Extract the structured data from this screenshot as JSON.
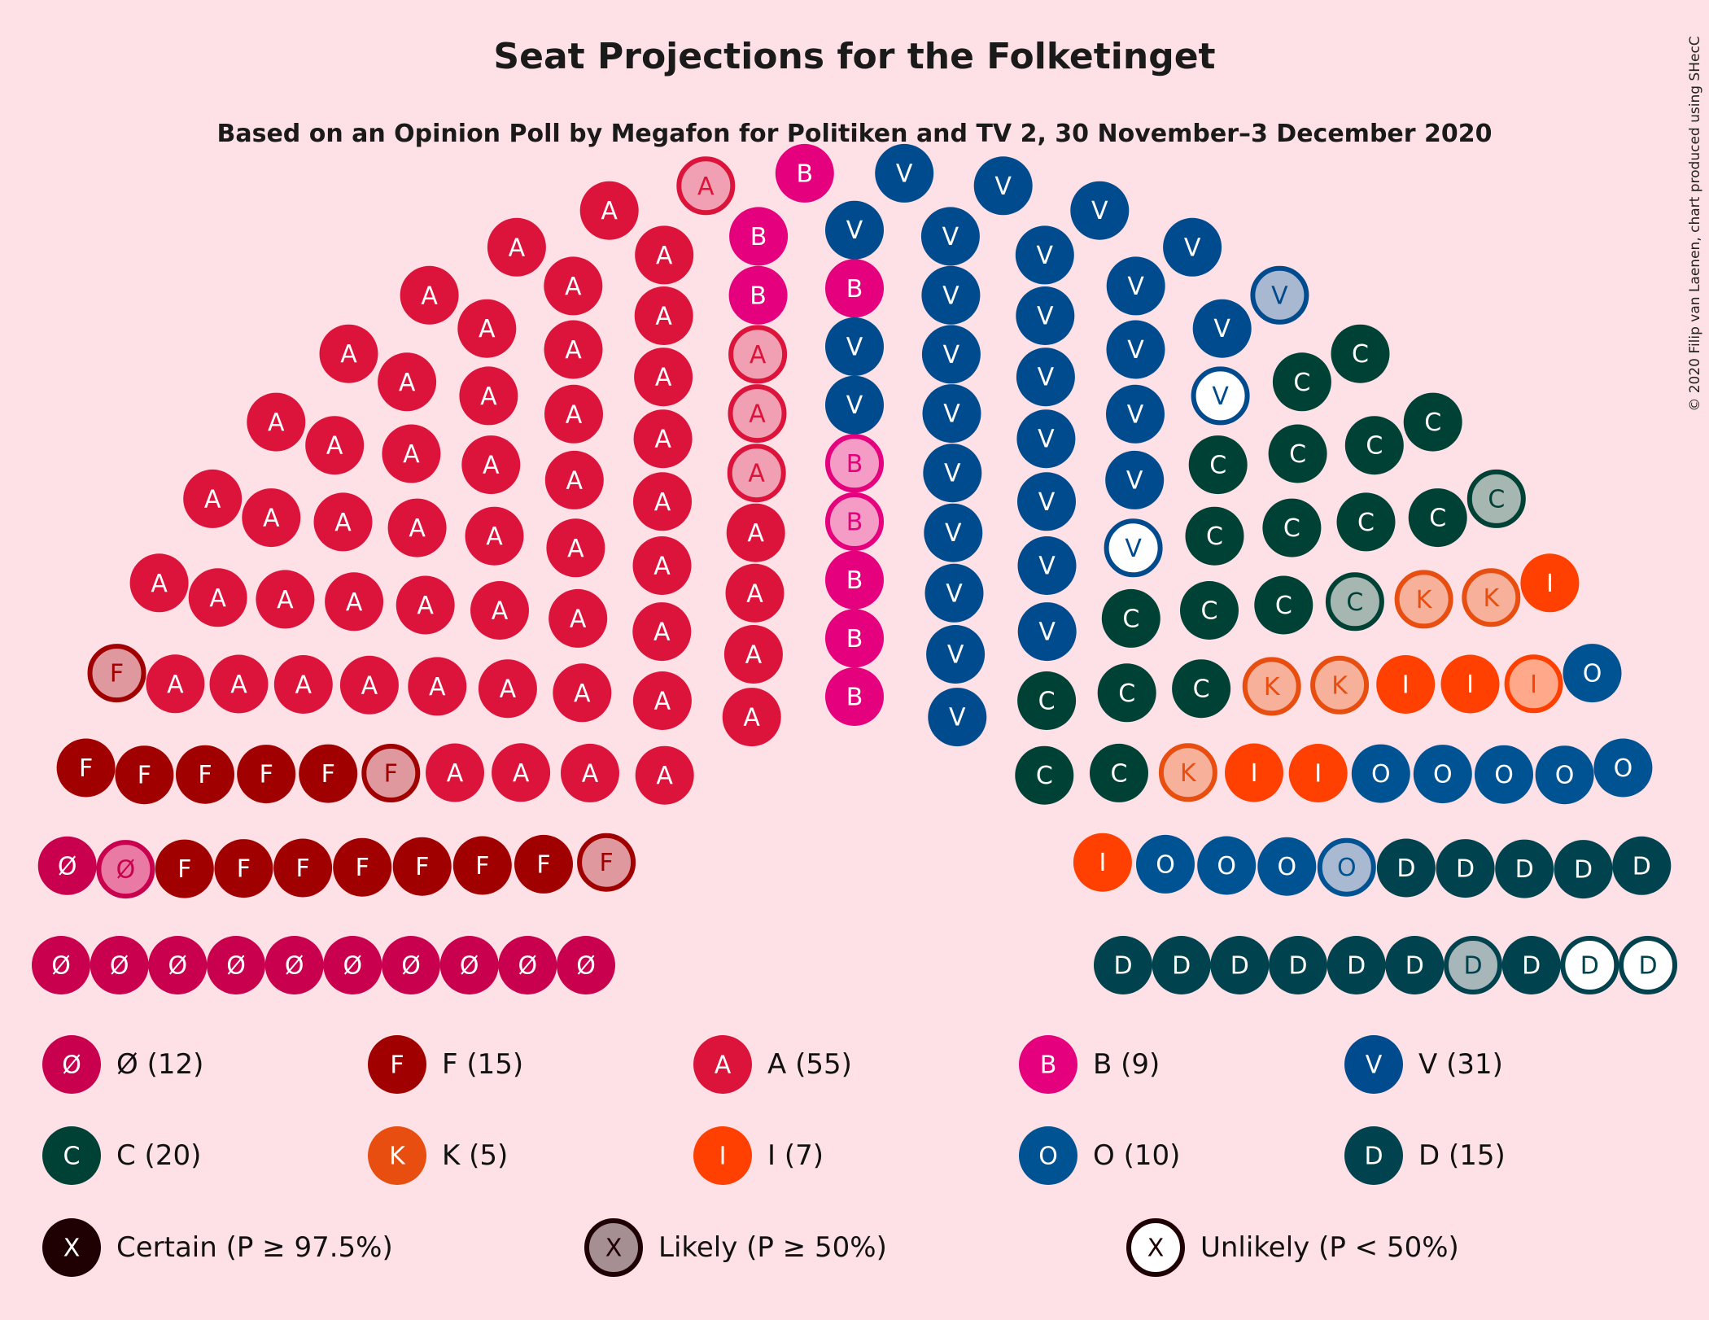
{
  "title": "Seat Projections for the Folketinget",
  "subtitle": "Based on an Opinion Poll by Megafon for Politiken and TV 2, 30 November–3 December 2020",
  "copyright": "© 2020 Filip van Laenen, chart produced using SHecC",
  "chart_data": {
    "type": "parliament",
    "total_seats": 179,
    "parties": [
      {
        "letter": "Ø",
        "label": "Ø (12)",
        "seats": 12,
        "certain": 11,
        "likely": 1,
        "unlikely": 0,
        "color": "#c8004e",
        "light": "#e87aa3",
        "text_color": "#ffffff"
      },
      {
        "letter": "F",
        "label": "F (15)",
        "seats": 15,
        "certain": 12,
        "likely": 3,
        "unlikely": 0,
        "color": "#a10000",
        "light": "#e0989f",
        "text_color": "#ffffff"
      },
      {
        "letter": "A",
        "label": "A (55)",
        "seats": 55,
        "certain": 51,
        "likely": 4,
        "unlikely": 0,
        "color": "#dc143c",
        "light": "#f1a0b3",
        "text_color": "#ffffff"
      },
      {
        "letter": "B",
        "label": "B (9)",
        "seats": 9,
        "certain": 7,
        "likely": 2,
        "unlikely": 0,
        "color": "#e5007d",
        "light": "#f49cc6",
        "text_color": "#ffffff"
      },
      {
        "letter": "V",
        "label": "V (31)",
        "seats": 31,
        "certain": 28,
        "likely": 1,
        "unlikely": 2,
        "color": "#004b8d",
        "light": "#a8b8d0",
        "text_color": "#ffffff"
      },
      {
        "letter": "C",
        "label": "C (20)",
        "seats": 20,
        "certain": 18,
        "likely": 2,
        "unlikely": 0,
        "color": "#004136",
        "light": "#a6b6b1",
        "text_color": "#ffffff"
      },
      {
        "letter": "K",
        "label": "K (5)",
        "seats": 5,
        "certain": 0,
        "likely": 5,
        "unlikely": 0,
        "color": "#e84e10",
        "light": "#f7b09a",
        "text_color": "#ffffff"
      },
      {
        "letter": "I",
        "label": "I (7)",
        "seats": 7,
        "certain": 6,
        "likely": 1,
        "unlikely": 0,
        "color": "#ff4000",
        "light": "#ffa98a",
        "text_color": "#ffffff"
      },
      {
        "letter": "O",
        "label": "O (10)",
        "seats": 10,
        "certain": 9,
        "likely": 1,
        "unlikely": 0,
        "color": "#005392",
        "light": "#a9b9d1",
        "text_color": "#ffffff"
      },
      {
        "letter": "D",
        "label": "D (15)",
        "seats": 15,
        "certain": 12,
        "likely": 1,
        "unlikely": 2,
        "color": "#00424d",
        "light": "#a6b6b9",
        "text_color": "#ffffff"
      }
    ],
    "probability_legend": [
      {
        "key": "certain",
        "letter": "X",
        "label": "Certain (P ≥ 97.5%)"
      },
      {
        "key": "likely",
        "letter": "X",
        "label": "Likely (P ≥ 50%)"
      },
      {
        "key": "unlikely",
        "letter": "X",
        "label": "Unlikely (P < 50%)"
      }
    ],
    "legend_certainty_color": "#1f0003",
    "legend_likely_fill": "#a58f93"
  }
}
